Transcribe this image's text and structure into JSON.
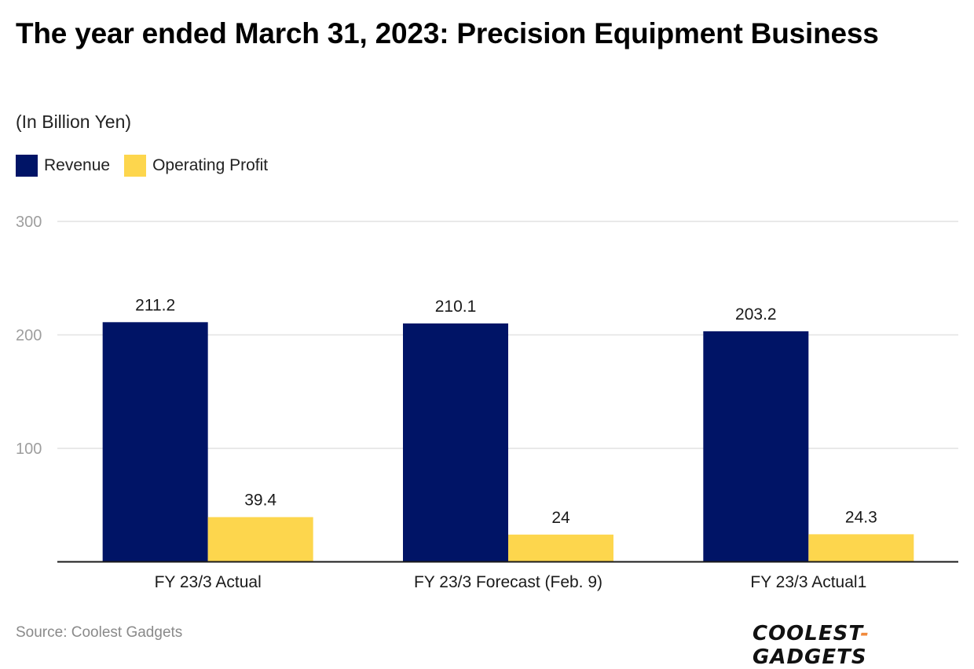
{
  "chart_data": {
    "type": "bar",
    "title": "The year ended March 31, 2023: Precision Equipment Business",
    "subtitle": "(In Billion Yen)",
    "xlabel": "",
    "ylabel": "",
    "categories": [
      "FY 23/3 Actual",
      "FY 23/3 Forecast (Feb. 9)",
      "FY 23/3 Actual1"
    ],
    "series": [
      {
        "name": "Revenue",
        "color": "#001466",
        "values": [
          211.2,
          210.1,
          203.2
        ],
        "labels": [
          "211.2",
          "210.1",
          "203.2"
        ]
      },
      {
        "name": "Operating Profit",
        "color": "#FDD64D",
        "values": [
          39.4,
          24,
          24.3
        ],
        "labels": [
          "39.4",
          "24",
          "24.3"
        ]
      }
    ],
    "ylim": [
      0,
      300
    ],
    "yticks": [
      100,
      200,
      300
    ],
    "ytick_labels": [
      "100",
      "200",
      "300"
    ],
    "grid": true,
    "legend_position": "top-left"
  },
  "footer": {
    "source": "Source: Coolest Gadgets",
    "brand_left": "COOLEST",
    "brand_dash": "-",
    "brand_right": "GADGETS"
  }
}
